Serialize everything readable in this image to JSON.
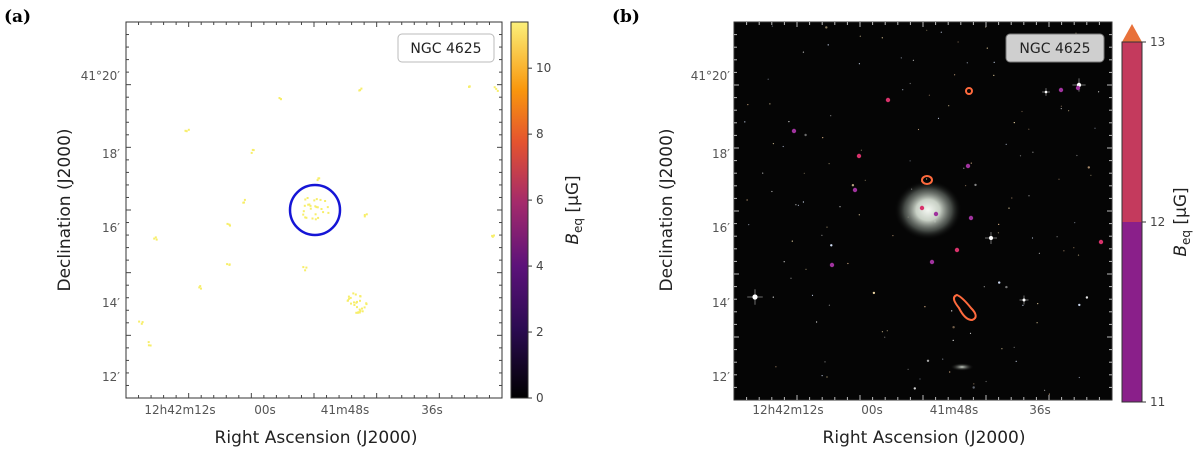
{
  "panels": [
    {
      "letter": "(a)",
      "badge": "NGC 4625",
      "xlabel": "Right Ascension (J2000)",
      "ylabel": "Declination (J2000)",
      "x_ticks": [
        "12h42m12s",
        "00s",
        "41m48s",
        "36s"
      ],
      "y_ticks": [
        "41°20′",
        "18′",
        "16′",
        "14′",
        "12′"
      ],
      "colorbar": {
        "label": "B_eq [μG]",
        "ticks": [
          "0",
          "2",
          "4",
          "6",
          "8",
          "10"
        ],
        "range": [
          0,
          11.4
        ],
        "cmap": "afmhot"
      },
      "circle_color": "#1515d6"
    },
    {
      "letter": "(b)",
      "badge": "NGC 4625",
      "xlabel": "Right Ascension (J2000)",
      "ylabel": "Declination (J2000)",
      "x_ticks": [
        "12h42m12s",
        "00s",
        "41m48s",
        "36s"
      ],
      "y_ticks": [
        "41°20′",
        "18′",
        "16′",
        "14′",
        "12′"
      ],
      "colorbar": {
        "label": "B_eq [μG]",
        "ticks": [
          "11",
          "12",
          "13"
        ],
        "range": [
          11,
          13
        ],
        "cmap": "discrete"
      },
      "contour_color": "#ff6a3d"
    }
  ],
  "colors": {
    "speckle": "#f7ee6a",
    "cbar_discrete_low": "#8a1f8a",
    "cbar_discrete_high": "#c43a5d",
    "cbar_arrow": "#e8713a"
  }
}
